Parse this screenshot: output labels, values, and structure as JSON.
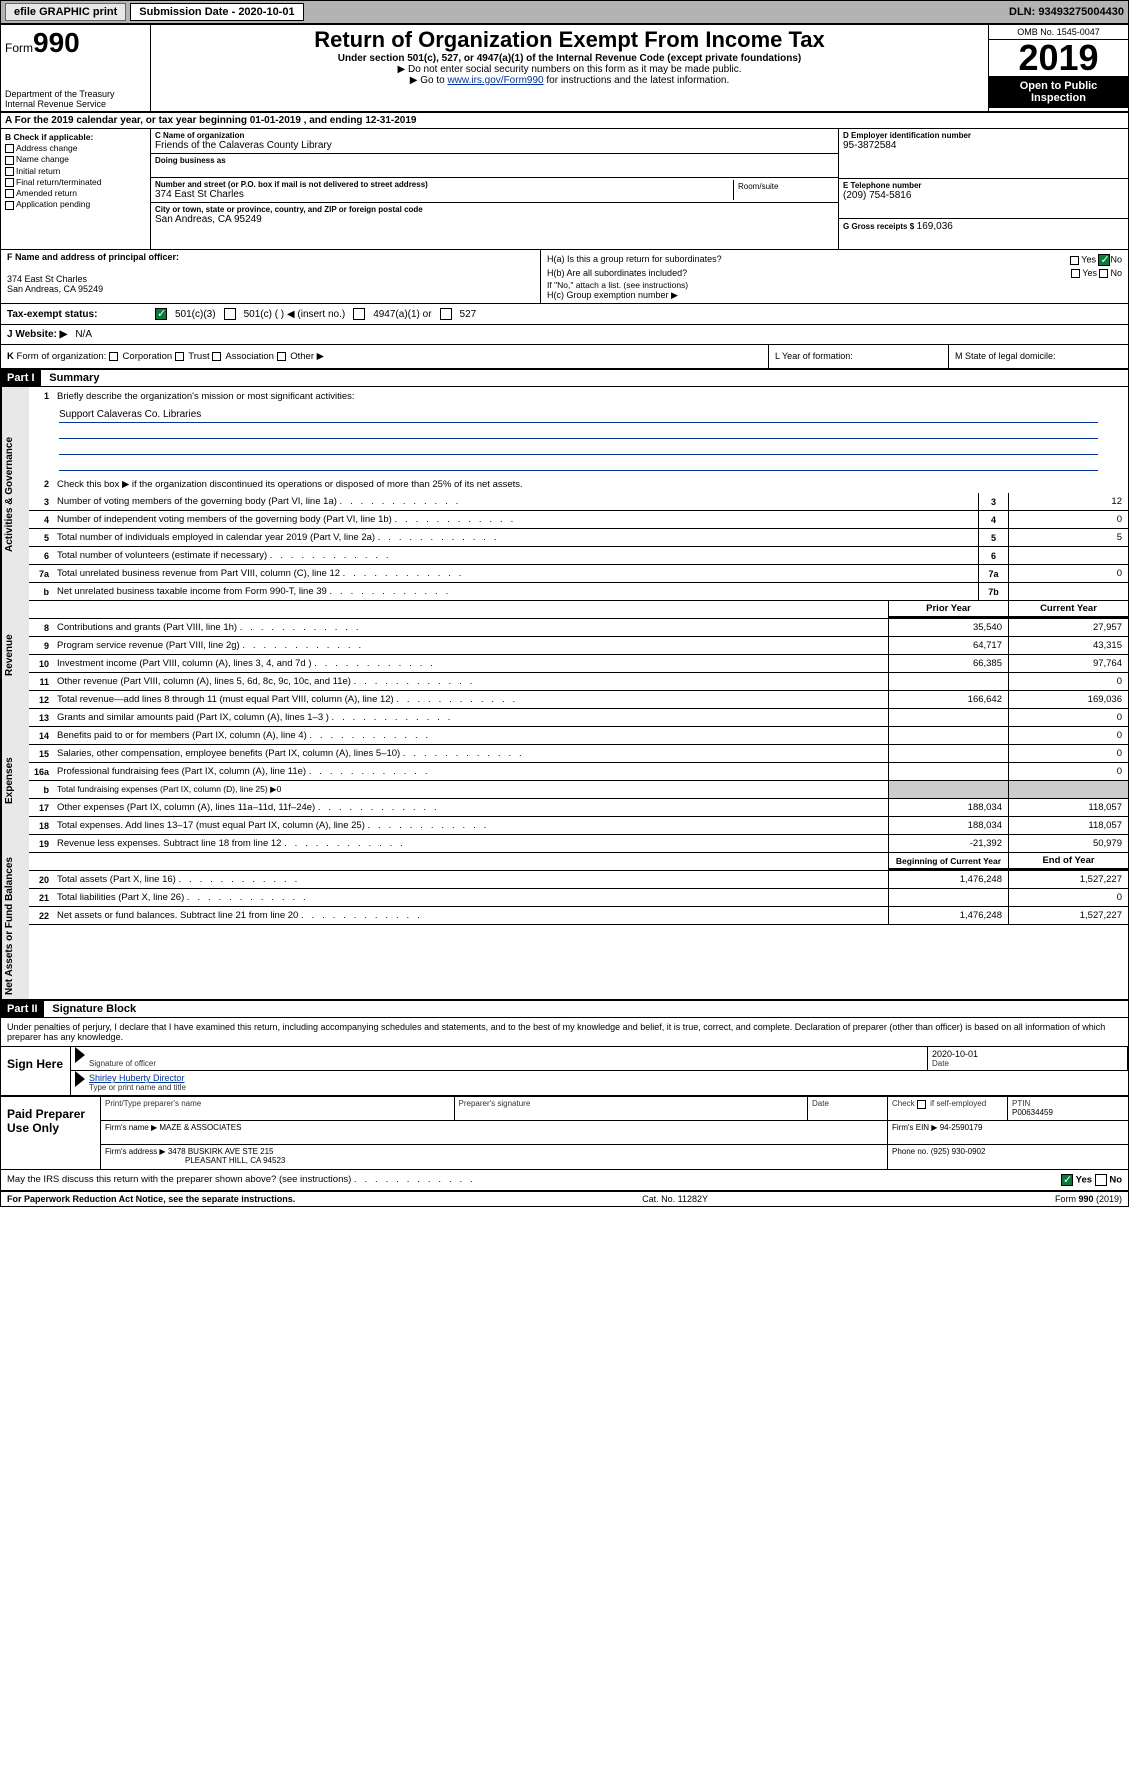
{
  "topbar": {
    "efile": "efile GRAPHIC print",
    "submission_label": "Submission Date - 2020-10-01",
    "dln": "DLN: 93493275004430"
  },
  "header": {
    "form_prefix": "Form",
    "form_number": "990",
    "dept": "Department of the Treasury\nInternal Revenue Service",
    "title": "Return of Organization Exempt From Income Tax",
    "subtitle": "Under section 501(c), 527, or 4947(a)(1) of the Internal Revenue Code (except private foundations)",
    "note1": "▶ Do not enter social security numbers on this form as it may be made public.",
    "note2_pre": "▶ Go to ",
    "note2_link": "www.irs.gov/Form990",
    "note2_post": " for instructions and the latest information.",
    "omb": "OMB No. 1545-0047",
    "year": "2019",
    "open": "Open to Public Inspection"
  },
  "sectionA": "A   For the 2019 calendar year, or tax year beginning 01-01-2019     , and ending 12-31-2019",
  "boxB": {
    "title": "B Check if applicable:",
    "items": [
      "Address change",
      "Name change",
      "Initial return",
      "Final return/terminated",
      "Amended return",
      "Application pending"
    ]
  },
  "boxC": {
    "name_lbl": "C Name of organization",
    "name": "Friends of the Calaveras County Library",
    "dba_lbl": "Doing business as",
    "dba": "",
    "street_lbl": "Number and street (or P.O. box if mail is not delivered to street address)",
    "street": "374 East St Charles",
    "room_lbl": "Room/suite",
    "city_lbl": "City or town, state or province, country, and ZIP or foreign postal code",
    "city": "San Andreas, CA  95249"
  },
  "boxD": {
    "ein_lbl": "D Employer identification number",
    "ein": "95-3872584",
    "phone_lbl": "E Telephone number",
    "phone": "(209) 754-5816",
    "gross_lbl": "G Gross receipts $",
    "gross": "169,036"
  },
  "boxF": {
    "lbl": "F Name and address of principal officer:",
    "addr1": "374 East St Charles",
    "addr2": "San Andreas, CA  95249"
  },
  "boxH": {
    "ha": "H(a)  Is this a group return for subordinates?",
    "hb": "H(b)  Are all subordinates included?",
    "hb_note": "If \"No,\" attach a list. (see instructions)",
    "hc": "H(c)  Group exemption number ▶",
    "yes": "Yes",
    "no": "No"
  },
  "taxexempt": {
    "lbl": "Tax-exempt status:",
    "c3": "501(c)(3)",
    "c": "501(c) (  ) ◀ (insert no.)",
    "a1": "4947(a)(1) or",
    "s527": "527"
  },
  "website": {
    "lbl": "J   Website: ▶",
    "val": "N/A"
  },
  "lineK": "K Form of organization:    Corporation    Trust    Association    Other ▶",
  "lineL": "L Year of formation:",
  "lineM": "M State of legal domicile:",
  "part1": {
    "hdr": "Part I",
    "title": "Summary"
  },
  "summary": {
    "q1": "Briefly describe the organization's mission or most significant activities:",
    "mission": "Support Calaveras Co. Libraries",
    "q2": "Check this box ▶      if the organization discontinued its operations or disposed of more than 25% of its net assets.",
    "lines": [
      {
        "n": "3",
        "t": "Number of voting members of the governing body (Part VI, line 1a)",
        "box": "3",
        "v": "12"
      },
      {
        "n": "4",
        "t": "Number of independent voting members of the governing body (Part VI, line 1b)",
        "box": "4",
        "v": "0"
      },
      {
        "n": "5",
        "t": "Total number of individuals employed in calendar year 2019 (Part V, line 2a)",
        "box": "5",
        "v": "5"
      },
      {
        "n": "6",
        "t": "Total number of volunteers (estimate if necessary)",
        "box": "6",
        "v": ""
      },
      {
        "n": "7a",
        "t": "Total unrelated business revenue from Part VIII, column (C), line 12",
        "box": "7a",
        "v": "0"
      },
      {
        "n": "b",
        "t": "Net unrelated business taxable income from Form 990-T, line 39",
        "box": "7b",
        "v": ""
      }
    ],
    "col_prior": "Prior Year",
    "col_current": "Current Year",
    "revenue": [
      {
        "n": "8",
        "t": "Contributions and grants (Part VIII, line 1h)",
        "p": "35,540",
        "c": "27,957"
      },
      {
        "n": "9",
        "t": "Program service revenue (Part VIII, line 2g)",
        "p": "64,717",
        "c": "43,315"
      },
      {
        "n": "10",
        "t": "Investment income (Part VIII, column (A), lines 3, 4, and 7d )",
        "p": "66,385",
        "c": "97,764"
      },
      {
        "n": "11",
        "t": "Other revenue (Part VIII, column (A), lines 5, 6d, 8c, 9c, 10c, and 11e)",
        "p": "",
        "c": "0"
      },
      {
        "n": "12",
        "t": "Total revenue—add lines 8 through 11 (must equal Part VIII, column (A), line 12)",
        "p": "166,642",
        "c": "169,036"
      }
    ],
    "expenses": [
      {
        "n": "13",
        "t": "Grants and similar amounts paid (Part IX, column (A), lines 1–3 )",
        "p": "",
        "c": "0"
      },
      {
        "n": "14",
        "t": "Benefits paid to or for members (Part IX, column (A), line 4)",
        "p": "",
        "c": "0"
      },
      {
        "n": "15",
        "t": "Salaries, other compensation, employee benefits (Part IX, column (A), lines 5–10)",
        "p": "",
        "c": "0"
      },
      {
        "n": "16a",
        "t": "Professional fundraising fees (Part IX, column (A), line 11e)",
        "p": "",
        "c": "0"
      },
      {
        "n": "b",
        "t": "Total fundraising expenses (Part IX, column (D), line 25) ▶0",
        "p": null,
        "c": null
      },
      {
        "n": "17",
        "t": "Other expenses (Part IX, column (A), lines 11a–11d, 11f–24e)",
        "p": "188,034",
        "c": "118,057"
      },
      {
        "n": "18",
        "t": "Total expenses. Add lines 13–17 (must equal Part IX, column (A), line 25)",
        "p": "188,034",
        "c": "118,057"
      },
      {
        "n": "19",
        "t": "Revenue less expenses. Subtract line 18 from line 12",
        "p": "-21,392",
        "c": "50,979"
      }
    ],
    "col_begin": "Beginning of Current Year",
    "col_end": "End of Year",
    "netassets": [
      {
        "n": "20",
        "t": "Total assets (Part X, line 16)",
        "p": "1,476,248",
        "c": "1,527,227"
      },
      {
        "n": "21",
        "t": "Total liabilities (Part X, line 26)",
        "p": "",
        "c": "0"
      },
      {
        "n": "22",
        "t": "Net assets or fund balances. Subtract line 21 from line 20",
        "p": "1,476,248",
        "c": "1,527,227"
      }
    ]
  },
  "vtabs": {
    "gov": "Activities & Governance",
    "rev": "Revenue",
    "exp": "Expenses",
    "net": "Net Assets or Fund Balances"
  },
  "part2": {
    "hdr": "Part II",
    "title": "Signature Block"
  },
  "sig": {
    "perjury": "Under penalties of perjury, I declare that I have examined this return, including accompanying schedules and statements, and to the best of my knowledge and belief, it is true, correct, and complete. Declaration of preparer (other than officer) is based on all information of which preparer has any knowledge.",
    "sign_here": "Sign Here",
    "sig_officer": "Signature of officer",
    "date_lbl": "Date",
    "date": "2020-10-01",
    "name_title": "Shirley Huberty  Director",
    "type_name": "Type or print name and title",
    "paid": "Paid Preparer Use Only",
    "prep_name_lbl": "Print/Type preparer's name",
    "prep_sig_lbl": "Preparer's signature",
    "self_emp": "Check       if self-employed",
    "ptin_lbl": "PTIN",
    "ptin": "P00634459",
    "firm_name_lbl": "Firm's name    ▶",
    "firm_name": "MAZE & ASSOCIATES",
    "firm_ein_lbl": "Firm's EIN ▶",
    "firm_ein": "94-2590179",
    "firm_addr_lbl": "Firm's address ▶",
    "firm_addr1": "3478 BUSKIRK AVE STE 215",
    "firm_addr2": "PLEASANT HILL, CA  94523",
    "phone_lbl": "Phone no.",
    "phone": "(925) 930-0902",
    "discuss": "May the IRS discuss this return with the preparer shown above? (see instructions)"
  },
  "footer": {
    "pra": "For Paperwork Reduction Act Notice, see the separate instructions.",
    "cat": "Cat. No. 11282Y",
    "form": "Form 990 (2019)"
  },
  "colors": {
    "topbar_bg": "#b3b3b3",
    "link": "#003399",
    "check_green": "#0a7a3a"
  }
}
